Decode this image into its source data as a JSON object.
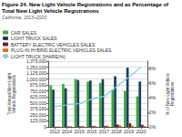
{
  "chart_data": {
    "type": "bar",
    "title": "Figure 24. New Light Vehicle Registrations and as Percentage of\nTotal New Light Vehicle Registrations",
    "subtitle": "California, 2013–2020",
    "categories": [
      "2013",
      "2014",
      "2015",
      "2016",
      "2017",
      "2018",
      "2019",
      "2020"
    ],
    "series": [
      {
        "name": "CAR SALES",
        "type": "bar",
        "color": "#3aaa35",
        "values": [
          870000,
          900000,
          1000000,
          950000,
          920000,
          770000,
          750000,
          640000
        ]
      },
      {
        "name": "LIGHT TRUCK SALES",
        "type": "bar",
        "color": "#1a3f5c",
        "values": [
          780000,
          810000,
          980000,
          970000,
          1000000,
          1060000,
          1240000,
          950000
        ]
      },
      {
        "name": "BATTERY ELECTRIC VEHICLES SALES",
        "type": "bar",
        "color": "#7b1a2e",
        "values": [
          5000,
          10000,
          14000,
          17000,
          20000,
          50000,
          80000,
          45000
        ]
      },
      {
        "name": "PLUG-IN HYBRID ELECTRIC VEHICLES SALES",
        "type": "bar",
        "color": "#e07020",
        "values": [
          12000,
          18000,
          22000,
          25000,
          28000,
          35000,
          28000,
          18000
        ]
      },
      {
        "name": "LIGHT TRUCK SHARE(%)",
        "type": "line",
        "axis": "y2",
        "color": "#7ec8e3",
        "values": [
          2.8,
          3.0,
          3.2,
          3.8,
          4.2,
          5.5,
          6.8,
          8.2
        ]
      }
    ],
    "ylabel": "Total Annual New Light\nVehicle Registrations",
    "y2label": "% of New Light Vehicle\nRegistrations",
    "ylim": [
      0,
      1375000
    ],
    "yticks": [
      0,
      {
        "value": 125000,
        "label": "125,000"
      },
      {
        "value": 250000,
        "label": "250,000"
      },
      {
        "value": 375000,
        "label": "375,000"
      },
      {
        "value": 500000,
        "label": "500,000"
      },
      {
        "value": 625000,
        "label": "625,000"
      },
      {
        "value": 750000,
        "label": "750,000"
      },
      {
        "value": 875000,
        "label": "875,000"
      },
      {
        "value": 1000000,
        "label": "1,000,000"
      },
      {
        "value": 1125000,
        "label": "1,125,000"
      },
      {
        "value": 1250000,
        "label": "1,250,000"
      },
      {
        "value": 1375000,
        "label": "1,375,000"
      }
    ],
    "y2lim": [
      0,
      9
    ],
    "y2ticks": [
      {
        "value": 0,
        "label": "0%"
      },
      {
        "value": 2,
        "label": "2%"
      },
      {
        "value": 4,
        "label": "4%"
      },
      {
        "value": 6,
        "label": "6%"
      },
      {
        "value": 8,
        "label": "8%"
      }
    ],
    "grid": true,
    "legend": "upper left"
  }
}
